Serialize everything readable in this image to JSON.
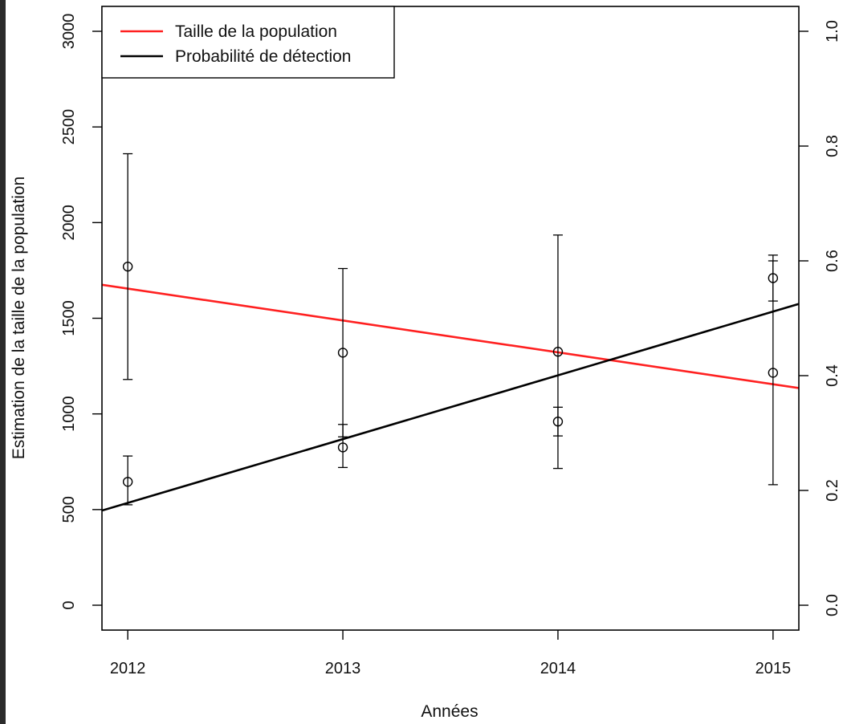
{
  "chart_data": {
    "type": "line",
    "title": "",
    "xlabel": "Années",
    "ylabel": "Estimation de la taille de la population",
    "y2label": "",
    "x_ticks": [
      2012,
      2013,
      2014,
      2015
    ],
    "y_ticks": [
      0,
      500,
      1000,
      1500,
      2000,
      2500,
      3000
    ],
    "y2_ticks": [
      "0.0",
      "0.2",
      "0.4",
      "0.6",
      "0.8",
      "1.0"
    ],
    "xlim": [
      2011.88,
      2015.12
    ],
    "ylim": [
      -130,
      3130
    ],
    "y2lim": [
      -0.0433,
      1.0433
    ],
    "legend_position": "top-left",
    "legend": [
      {
        "label": "Taille de la population",
        "color": "#ff2020"
      },
      {
        "label": "Probabilité de détection",
        "color": "#000000"
      }
    ],
    "series": [
      {
        "name": "Taille de la population",
        "axis": "left",
        "color": "#ff2020",
        "points": [
          {
            "x": 2012,
            "y": 1770,
            "lower": 1180,
            "upper": 2360
          },
          {
            "x": 2013,
            "y": 1320,
            "lower": 880,
            "upper": 1760
          },
          {
            "x": 2014,
            "y": 1325,
            "lower": 715,
            "upper": 1935
          },
          {
            "x": 2015,
            "y": 1215,
            "lower": 630,
            "upper": 1800
          }
        ],
        "trend": {
          "x": [
            2011.88,
            2015.12
          ],
          "y": [
            1675,
            1135
          ]
        }
      },
      {
        "name": "Probabilité de détection",
        "axis": "right",
        "color": "#000000",
        "points": [
          {
            "x": 2012,
            "y": 0.215,
            "lower": 0.175,
            "upper": 0.26
          },
          {
            "x": 2013,
            "y": 0.275,
            "lower": 0.24,
            "upper": 0.315
          },
          {
            "x": 2014,
            "y": 0.32,
            "lower": 0.295,
            "upper": 0.345
          },
          {
            "x": 2015,
            "y": 0.57,
            "lower": 0.53,
            "upper": 0.61
          }
        ],
        "trend": {
          "x": [
            2011.88,
            2015.12
          ],
          "y": [
            0.165,
            0.525
          ]
        }
      }
    ]
  }
}
